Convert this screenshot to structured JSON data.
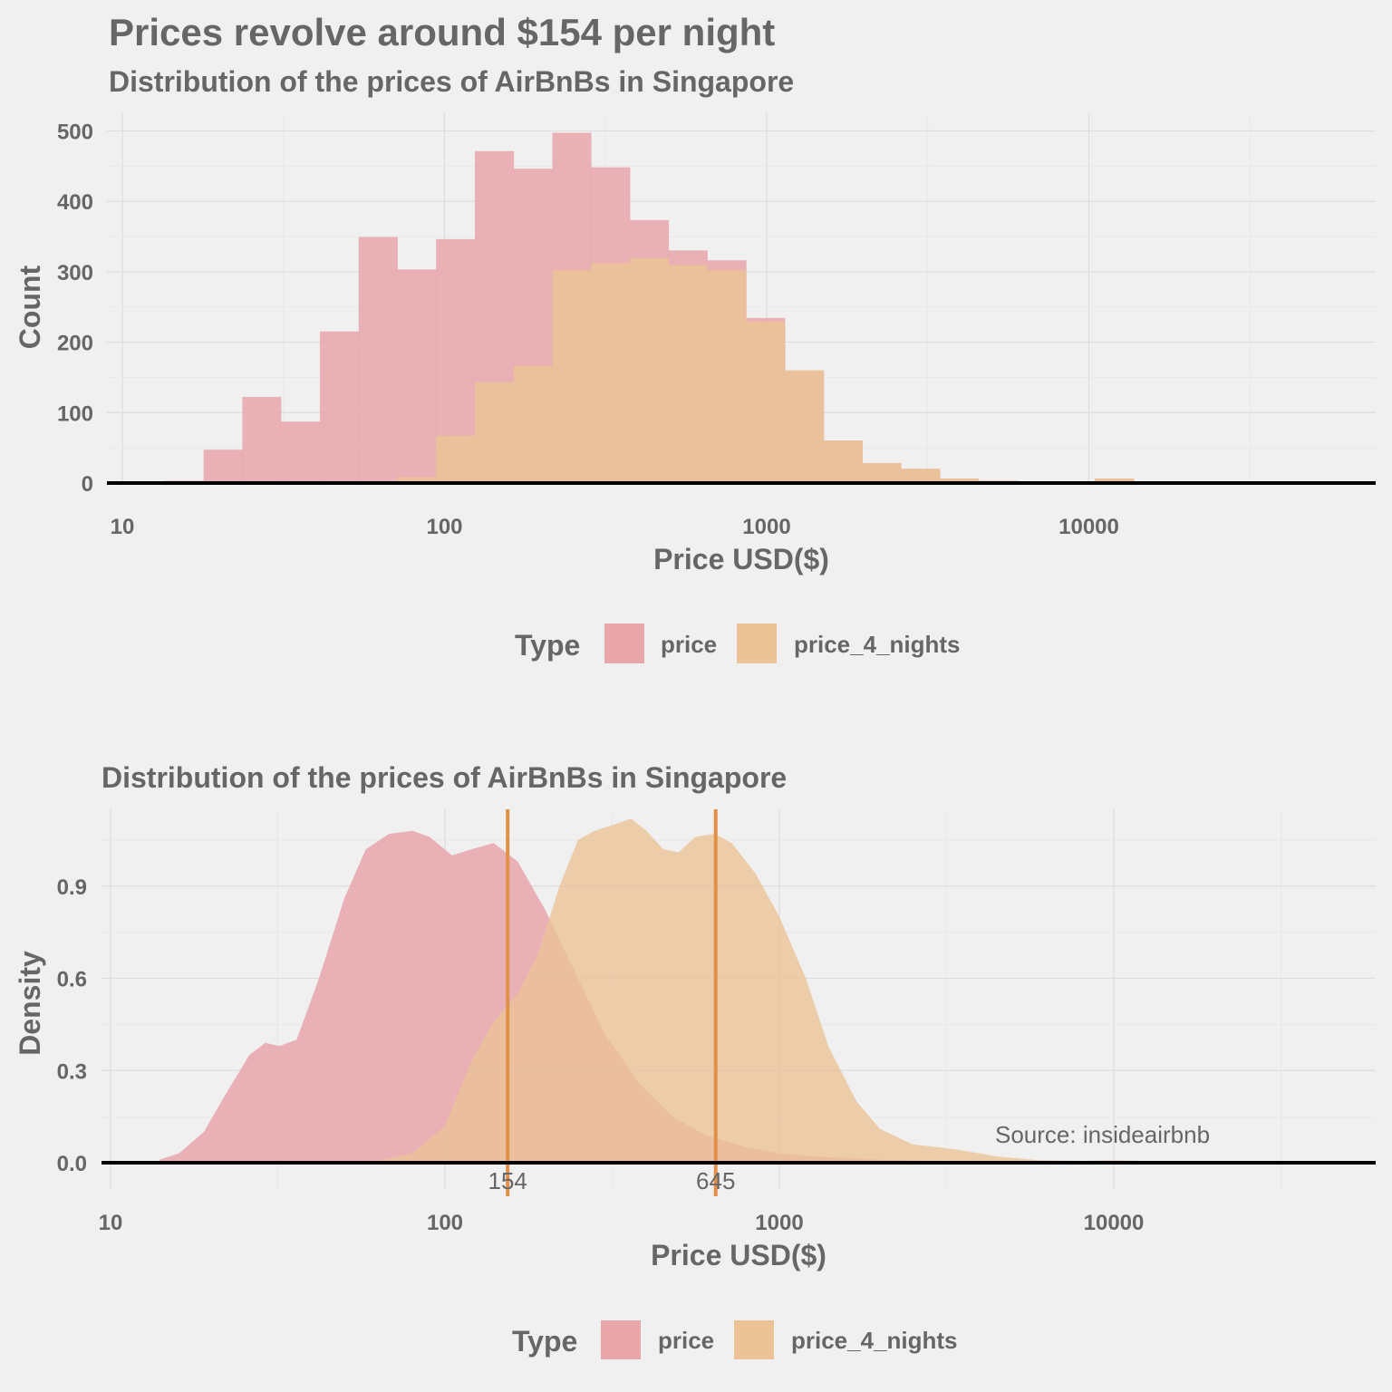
{
  "colors": {
    "background": "#f0f0f0",
    "text": "#666666",
    "price": "#e8a6aa",
    "price_4_nights": "#ebc397",
    "vline": "#e09048",
    "baseline": "#000000"
  },
  "chart_data": [
    {
      "type": "histogram",
      "title": "Prices revolve around $154 per night",
      "subtitle": "Distribution of the prices of AirBnBs in Singapore",
      "xlabel": "Price USD($)",
      "ylabel": "Count",
      "x_scale": "log10",
      "xlim": [
        10,
        60000
      ],
      "ylim": [
        0,
        525
      ],
      "x_ticks": [
        "10",
        "100",
        "1000",
        "10000"
      ],
      "y_ticks": [
        "0",
        "100",
        "200",
        "300",
        "400",
        "500"
      ],
      "legend": {
        "title": "Type",
        "position": "bottom",
        "entries": [
          "price",
          "price_4_nights"
        ]
      },
      "bin_edges": [
        13.6,
        17.9,
        23.6,
        31.1,
        41.1,
        54.2,
        71.5,
        94.3,
        124.4,
        164.1,
        216.4,
        285.4,
        376.5,
        496.6,
        655.1,
        864.1,
        1139.9,
        1503.5,
        1983.3,
        2616.1,
        3450.9,
        4551.9,
        6004.4,
        7920.3,
        10447.8,
        13781.7
      ],
      "series": [
        {
          "name": "price",
          "values": [
            3,
            47,
            122,
            87,
            215,
            349,
            303,
            346,
            471,
            446,
            497,
            448,
            373,
            330,
            316,
            234,
            158,
            60,
            28,
            20,
            6,
            3,
            2,
            0,
            6
          ]
        },
        {
          "name": "price_4_nights",
          "values": [
            0,
            0,
            0,
            0,
            0,
            2,
            8,
            67,
            143,
            166,
            302,
            312,
            319,
            309,
            302,
            229,
            160,
            60,
            28,
            20,
            6,
            3,
            2,
            0,
            6
          ]
        }
      ]
    },
    {
      "type": "area",
      "title": "Distribution of the prices of AirBnBs in Singapore",
      "xlabel": "Price USD($)",
      "ylabel": "Density",
      "x_scale": "log10",
      "xlim": [
        10,
        60000
      ],
      "ylim": [
        0,
        1.15
      ],
      "x_ticks": [
        "10",
        "100",
        "1000",
        "10000"
      ],
      "y_ticks": [
        "0.0",
        "0.3",
        "0.6",
        "0.9"
      ],
      "legend": {
        "title": "Type",
        "position": "bottom",
        "entries": [
          "price",
          "price_4_nights"
        ]
      },
      "vlines": [
        {
          "x": 154,
          "label": "154"
        },
        {
          "x": 645,
          "label": "645"
        }
      ],
      "annotation": "Source: insideairbnb",
      "series": [
        {
          "name": "price",
          "points": [
            [
              14,
              0.01
            ],
            [
              16,
              0.03
            ],
            [
              19,
              0.1
            ],
            [
              22,
              0.22
            ],
            [
              26,
              0.35
            ],
            [
              29,
              0.39
            ],
            [
              32,
              0.38
            ],
            [
              36,
              0.4
            ],
            [
              42,
              0.6
            ],
            [
              50,
              0.86
            ],
            [
              58,
              1.02
            ],
            [
              68,
              1.07
            ],
            [
              80,
              1.08
            ],
            [
              90,
              1.06
            ],
            [
              105,
              1.0
            ],
            [
              120,
              1.02
            ],
            [
              140,
              1.04
            ],
            [
              165,
              0.98
            ],
            [
              200,
              0.82
            ],
            [
              250,
              0.6
            ],
            [
              300,
              0.42
            ],
            [
              380,
              0.26
            ],
            [
              480,
              0.15
            ],
            [
              600,
              0.09
            ],
            [
              800,
              0.05
            ],
            [
              1000,
              0.03
            ],
            [
              1300,
              0.02
            ],
            [
              2000,
              0.01
            ],
            [
              3000,
              0.005
            ],
            [
              4000,
              0.004
            ],
            [
              6000,
              0.003
            ],
            [
              10000,
              0.003
            ],
            [
              12000,
              0.004
            ],
            [
              20000,
              0.002
            ],
            [
              35000,
              0.002
            ],
            [
              50000,
              0.003
            ]
          ]
        },
        {
          "name": "price_4_nights",
          "points": [
            [
              40,
              0.0
            ],
            [
              60,
              0.003
            ],
            [
              80,
              0.03
            ],
            [
              100,
              0.12
            ],
            [
              120,
              0.33
            ],
            [
              140,
              0.46
            ],
            [
              165,
              0.55
            ],
            [
              190,
              0.68
            ],
            [
              220,
              0.9
            ],
            [
              250,
              1.05
            ],
            [
              280,
              1.08
            ],
            [
              320,
              1.1
            ],
            [
              360,
              1.12
            ],
            [
              400,
              1.08
            ],
            [
              450,
              1.02
            ],
            [
              500,
              1.01
            ],
            [
              560,
              1.06
            ],
            [
              640,
              1.07
            ],
            [
              720,
              1.04
            ],
            [
              850,
              0.94
            ],
            [
              1000,
              0.8
            ],
            [
              1200,
              0.6
            ],
            [
              1400,
              0.38
            ],
            [
              1700,
              0.2
            ],
            [
              2000,
              0.11
            ],
            [
              2500,
              0.06
            ],
            [
              3000,
              0.05
            ],
            [
              3500,
              0.04
            ],
            [
              4500,
              0.02
            ],
            [
              6000,
              0.008
            ],
            [
              8000,
              0.006
            ],
            [
              10000,
              0.008
            ],
            [
              12000,
              0.006
            ],
            [
              18000,
              0.003
            ],
            [
              30000,
              0.002
            ],
            [
              40000,
              0.004
            ],
            [
              50000,
              0.003
            ]
          ]
        }
      ]
    }
  ]
}
